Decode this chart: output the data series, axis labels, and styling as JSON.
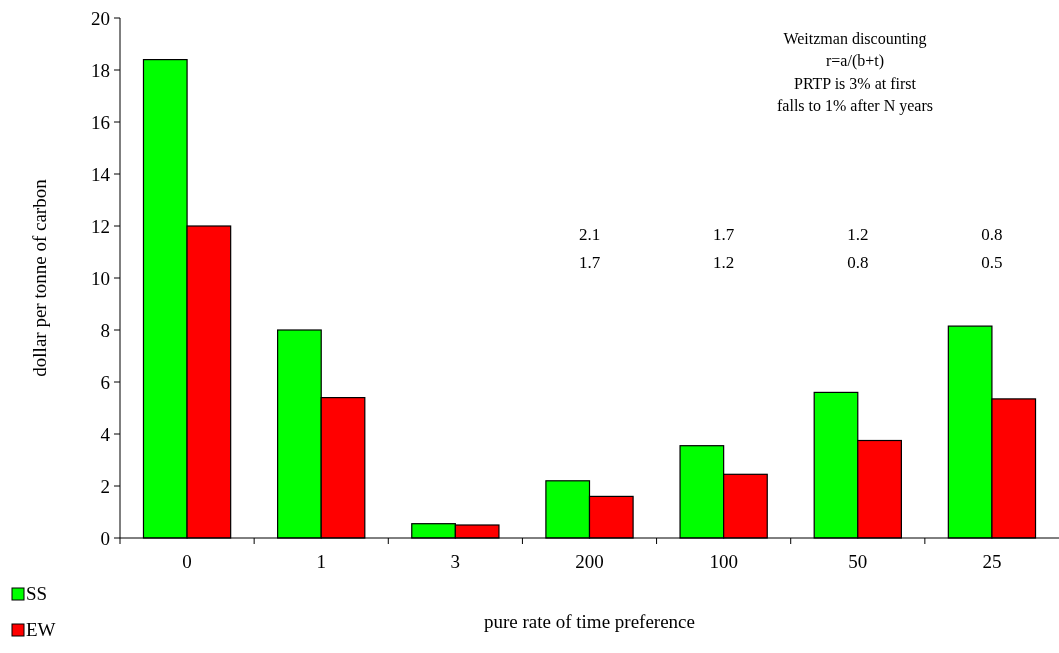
{
  "chart_data": {
    "type": "bar",
    "xlabel": "pure rate of time preference",
    "ylabel": "dollar per tonne of carbon",
    "categories": [
      "0",
      "1",
      "3",
      "200",
      "100",
      "50",
      "25"
    ],
    "series": [
      {
        "name": "SS",
        "color": "#00ff00",
        "values": [
          18.4,
          8.0,
          0.55,
          2.2,
          3.55,
          5.6,
          8.15
        ]
      },
      {
        "name": "EW",
        "color": "#ff0000",
        "values": [
          12.0,
          5.4,
          0.5,
          1.6,
          2.45,
          3.75,
          5.35
        ]
      }
    ],
    "ylim": [
      0,
      20
    ],
    "yticks": [
      0,
      2,
      4,
      6,
      8,
      10,
      12,
      14,
      16,
      18,
      20
    ],
    "grid": false,
    "legend": "bottom left",
    "annotations": [
      "Weitzman discounting\nr=a/(b+t)\nPRTP is 3% at first\nfalls to 1% after N years",
      "2.1",
      "1.7",
      "1.7",
      "1.2",
      "1.2",
      "0.8",
      "0.8",
      "0.5"
    ]
  }
}
